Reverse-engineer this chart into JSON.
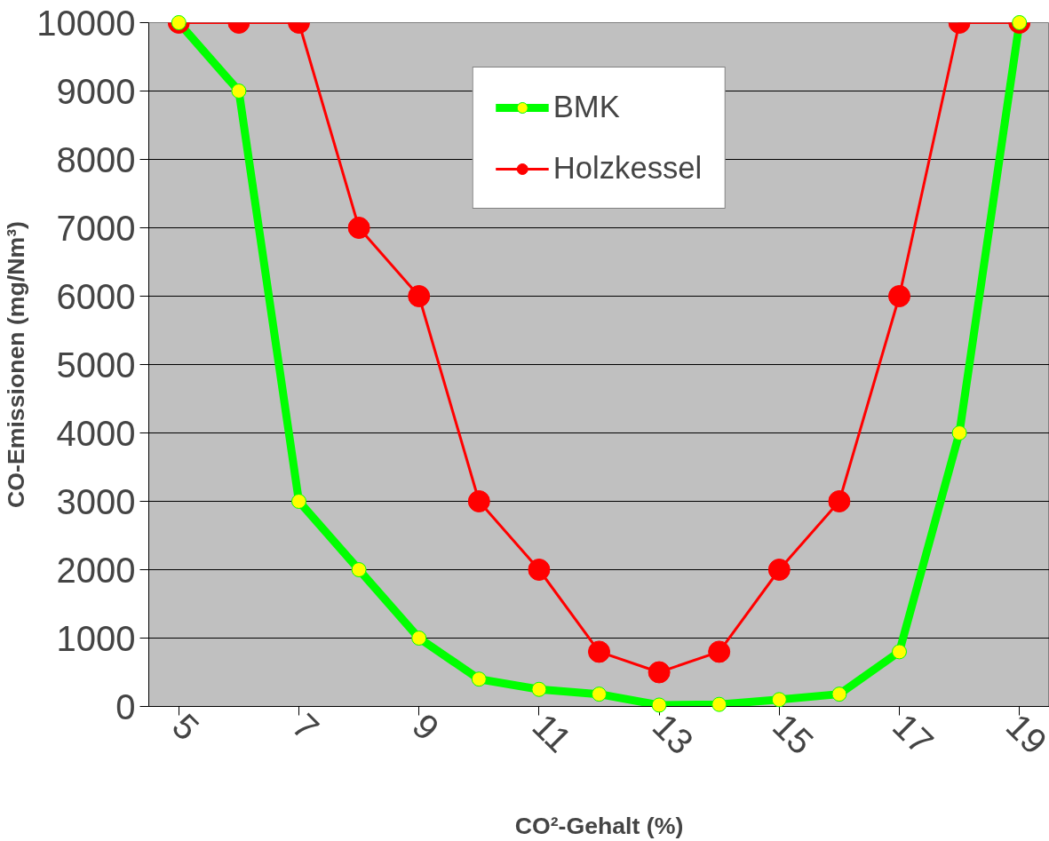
{
  "chart_data": {
    "type": "line",
    "xlabel": "CO²-Gehalt (%)",
    "ylabel": "CO-Emissionen (mg/Nm³)",
    "x": [
      5,
      6,
      7,
      8,
      9,
      10,
      11,
      12,
      13,
      14,
      15,
      16,
      17,
      18,
      19
    ],
    "series": [
      {
        "name": "BMK",
        "color": "#00ff00",
        "colors": [
          "#ffff00",
          "#ffff00",
          "#ffff00",
          "#ffff00",
          "#ffff00",
          "#ffff00",
          "#ffff00",
          "#ffff00",
          "#ffff00",
          "#ffff00",
          "#ffff00",
          "#ffff00",
          "#ffff00",
          "#ffff00",
          "#ffff00"
        ],
        "values": [
          10000,
          9000,
          3000,
          2000,
          1000,
          400,
          250,
          180,
          20,
          30,
          100,
          180,
          800,
          4000,
          10000
        ]
      },
      {
        "name": "Holzkessel",
        "color": "#ff0000",
        "values": [
          10000,
          10000,
          10000,
          7000,
          6000,
          3000,
          2000,
          800,
          500,
          800,
          2000,
          3000,
          6000,
          10000,
          10000
        ]
      }
    ],
    "xlim": [
      4.5,
      19.5
    ],
    "xticks": [
      5,
      7,
      9,
      11,
      13,
      15,
      17,
      19
    ],
    "ylim": [
      0,
      10000
    ],
    "yticks": [
      0,
      1000,
      2000,
      3000,
      4000,
      5000,
      6000,
      7000,
      8000,
      9000,
      10000
    ],
    "grid": "y",
    "legend": "top",
    "marker": "circle",
    "line_style": "solid"
  }
}
